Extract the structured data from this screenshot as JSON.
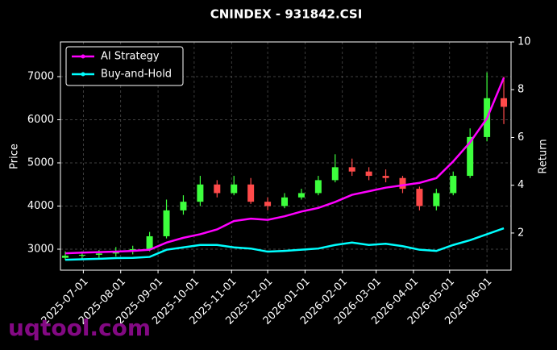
{
  "chart_data": {
    "type": "candlestick",
    "title": "CNINDEX - 931842.CSI",
    "y_label": "Price",
    "y2_label": "Return",
    "watermark": "uqtool.com",
    "x": [
      "2025-06-16",
      "2025-06-30",
      "2025-07-14",
      "2025-07-28",
      "2025-08-11",
      "2025-08-25",
      "2025-09-08",
      "2025-09-22",
      "2025-10-06",
      "2025-10-20",
      "2025-11-03",
      "2025-11-17",
      "2025-12-01",
      "2025-12-15",
      "2025-12-29",
      "2026-01-12",
      "2026-01-26",
      "2026-02-09",
      "2026-02-23",
      "2026-03-09",
      "2026-03-23",
      "2026-04-06",
      "2026-04-20",
      "2026-05-04",
      "2026-05-18",
      "2026-06-01",
      "2026-06-15"
    ],
    "candles": {
      "open": [
        2800,
        2850,
        2870,
        2900,
        2950,
        3000,
        3300,
        3900,
        4100,
        4500,
        4300,
        4500,
        4100,
        4000,
        4200,
        4300,
        4600,
        4900,
        4800,
        4700,
        4650,
        4400,
        4000,
        4300,
        4700,
        5600,
        6500
      ],
      "high": [
        2950,
        2950,
        2980,
        3050,
        3080,
        3400,
        4150,
        4250,
        4700,
        4600,
        4700,
        4650,
        4200,
        4300,
        4400,
        4700,
        5200,
        5100,
        4900,
        4850,
        4700,
        4450,
        4400,
        4800,
        5800,
        7100,
        7000
      ],
      "low": [
        2750,
        2780,
        2800,
        2830,
        2880,
        2950,
        3250,
        3800,
        4000,
        4200,
        4250,
        4050,
        3900,
        3950,
        4150,
        4250,
        4550,
        4700,
        4600,
        4550,
        4300,
        3900,
        3900,
        4250,
        4650,
        5500,
        5900
      ],
      "close": [
        2850,
        2870,
        2900,
        2950,
        3000,
        3300,
        3900,
        4100,
        4500,
        4300,
        4500,
        4100,
        4000,
        4200,
        4300,
        4600,
        4900,
        4800,
        4700,
        4650,
        4400,
        4000,
        4300,
        4700,
        5600,
        6500,
        6300
      ],
      "up_color": "#3dff3d",
      "down_color": "#ff4a4a"
    },
    "series": [
      {
        "name": "AI Strategy",
        "color": "#ff00ff",
        "axis": "y2",
        "values": [
          1.15,
          1.18,
          1.2,
          1.22,
          1.25,
          1.3,
          1.6,
          1.8,
          1.95,
          2.15,
          2.5,
          2.6,
          2.55,
          2.7,
          2.9,
          3.05,
          3.3,
          3.6,
          3.75,
          3.9,
          4.0,
          4.1,
          4.3,
          5.0,
          5.8,
          6.8,
          8.5
        ]
      },
      {
        "name": "Buy-and-Hold",
        "color": "#00ffff",
        "axis": "y2",
        "values": [
          0.88,
          0.9,
          0.92,
          0.95,
          0.96,
          1.0,
          1.3,
          1.4,
          1.5,
          1.5,
          1.4,
          1.35,
          1.22,
          1.25,
          1.3,
          1.35,
          1.5,
          1.6,
          1.5,
          1.55,
          1.45,
          1.3,
          1.25,
          1.5,
          1.7,
          1.95,
          2.2
        ]
      }
    ],
    "xlim": [
      "2025-06-12",
      "2026-06-21"
    ],
    "xticks": [
      "2025-07-01",
      "2025-08-01",
      "2025-09-01",
      "2025-10-01",
      "2025-11-01",
      "2025-12-01",
      "2026-01-01",
      "2026-02-01",
      "2026-03-01",
      "2026-04-01",
      "2026-05-01",
      "2026-06-01"
    ],
    "ylim": [
      2514,
      7804
    ],
    "yticks": [
      3000,
      4000,
      5000,
      6000,
      7000
    ],
    "y2lim": [
      0.445,
      10
    ],
    "y2ticks": [
      2,
      4,
      6,
      8,
      10
    ],
    "grid": true,
    "legend": "upper left"
  }
}
